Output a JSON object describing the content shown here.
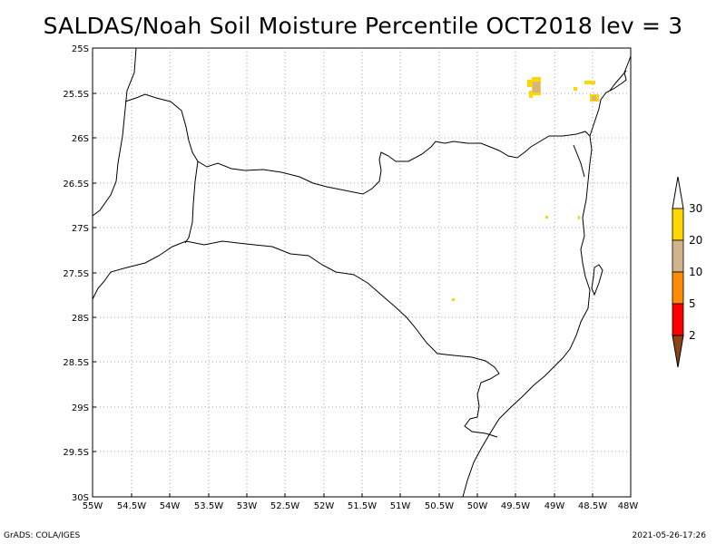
{
  "title": "SALDAS/Noah Soil Moisture Percentile OCT2018 lev = 3",
  "footer": {
    "left": "GrADS: COLA/IGES",
    "right": "2021-05-26-17:26"
  },
  "map": {
    "lat_labels": [
      "25S",
      "25.5S",
      "26S",
      "26.5S",
      "27S",
      "27.5S",
      "28S",
      "28.5S",
      "29S",
      "29.5S",
      "30S"
    ],
    "lon_labels": [
      "55W",
      "54.5W",
      "54W",
      "53.5W",
      "53W",
      "52.5W",
      "52W",
      "51.5W",
      "51W",
      "50.5W",
      "50W",
      "49.5W",
      "49W",
      "48.5W",
      "48W"
    ],
    "grid": true,
    "coastline_color": "#000000"
  },
  "colorbar": {
    "labels": [
      "2",
      "5",
      "10",
      "20",
      "30"
    ],
    "colors": [
      "#8b4513",
      "#ff0000",
      "#ff8c00",
      "#d2b48c",
      "#ffd700"
    ]
  }
}
